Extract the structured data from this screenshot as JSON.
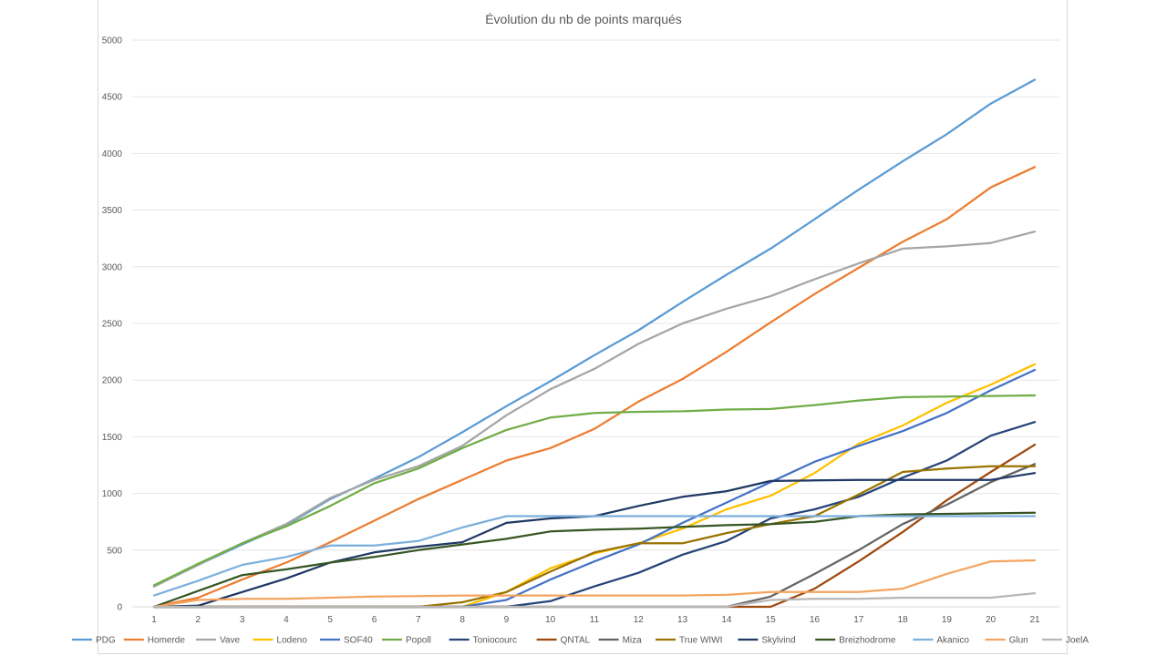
{
  "chart_data": {
    "type": "line",
    "title": "Évolution du nb de points marqués",
    "xlabel": "",
    "ylabel": "",
    "x": [
      1,
      2,
      3,
      4,
      5,
      6,
      7,
      8,
      9,
      10,
      11,
      12,
      13,
      14,
      15,
      16,
      17,
      18,
      19,
      20,
      21
    ],
    "x_ticks": [
      "1",
      "2",
      "3",
      "4",
      "5",
      "6",
      "7",
      "8",
      "9",
      "10",
      "11",
      "12",
      "13",
      "14",
      "15",
      "16",
      "17",
      "18",
      "19",
      "20",
      "21"
    ],
    "ylim": [
      0,
      5000
    ],
    "y_ticks": [
      "0",
      "500",
      "1000",
      "1500",
      "2000",
      "2500",
      "3000",
      "3500",
      "4000",
      "4500",
      "5000"
    ],
    "grid": true,
    "legend_position": "bottom",
    "series": [
      {
        "name": "PDG",
        "color": "#5b9bd5",
        "values": [
          180,
          370,
          550,
          720,
          950,
          1130,
          1320,
          1540,
          1770,
          1990,
          2220,
          2440,
          2690,
          2930,
          3160,
          3420,
          3680,
          3930,
          4170,
          4440,
          4650
        ]
      },
      {
        "name": "Homerde",
        "color": "#ed7d31",
        "values": [
          0,
          80,
          240,
          390,
          570,
          760,
          950,
          1120,
          1290,
          1400,
          1570,
          1810,
          2010,
          2250,
          2510,
          2760,
          2990,
          3220,
          3420,
          3700,
          3880
        ]
      },
      {
        "name": "Vave",
        "color": "#a5a5a5",
        "values": [
          180,
          370,
          560,
          730,
          960,
          1120,
          1240,
          1420,
          1690,
          1920,
          2100,
          2320,
          2500,
          2630,
          2740,
          2890,
          3030,
          3160,
          3180,
          3210,
          3310
        ]
      },
      {
        "name": "Lodeno",
        "color": "#ffc000",
        "values": [
          0,
          0,
          0,
          0,
          0,
          0,
          0,
          0,
          130,
          340,
          470,
          560,
          690,
          860,
          980,
          1180,
          1440,
          1600,
          1800,
          1960,
          2140
        ]
      },
      {
        "name": "SOF40",
        "color": "#4472c4",
        "values": [
          0,
          0,
          0,
          0,
          0,
          0,
          0,
          0,
          60,
          240,
          400,
          550,
          740,
          920,
          1100,
          1280,
          1420,
          1550,
          1710,
          1910,
          2090
        ]
      },
      {
        "name": "Popoll",
        "color": "#70ad47",
        "values": [
          190,
          380,
          560,
          710,
          890,
          1090,
          1220,
          1400,
          1560,
          1670,
          1710,
          1720,
          1725,
          1740,
          1745,
          1780,
          1820,
          1850,
          1855,
          1860,
          1865
        ]
      },
      {
        "name": "Toniocourc",
        "color": "#264478",
        "values": [
          0,
          0,
          0,
          0,
          0,
          0,
          0,
          0,
          0,
          50,
          180,
          300,
          460,
          580,
          780,
          860,
          970,
          1140,
          1290,
          1510,
          1630
        ]
      },
      {
        "name": "QNTAL",
        "color": "#9e480e",
        "values": [
          0,
          0,
          0,
          0,
          0,
          0,
          0,
          0,
          0,
          0,
          0,
          0,
          0,
          0,
          0,
          160,
          400,
          660,
          940,
          1190,
          1430
        ]
      },
      {
        "name": "Miza",
        "color": "#636363",
        "values": [
          0,
          0,
          0,
          0,
          0,
          0,
          0,
          0,
          0,
          0,
          0,
          0,
          0,
          0,
          90,
          290,
          500,
          730,
          900,
          1100,
          1260
        ]
      },
      {
        "name": "True WIWI",
        "color": "#997300",
        "values": [
          0,
          0,
          0,
          0,
          0,
          0,
          0,
          40,
          130,
          310,
          480,
          560,
          560,
          650,
          730,
          800,
          990,
          1190,
          1220,
          1240,
          1240
        ]
      },
      {
        "name": "Skylvind",
        "color": "#1f3864",
        "values": [
          0,
          10,
          130,
          250,
          390,
          480,
          530,
          570,
          740,
          780,
          800,
          890,
          970,
          1020,
          1110,
          1115,
          1120,
          1120,
          1120,
          1120,
          1180
        ]
      },
      {
        "name": "Breizhodrome",
        "color": "#375623",
        "values": [
          0,
          140,
          280,
          330,
          390,
          440,
          500,
          550,
          600,
          665,
          680,
          690,
          705,
          720,
          730,
          750,
          800,
          815,
          820,
          825,
          830
        ]
      },
      {
        "name": "Akanico",
        "color": "#7cafdd",
        "values": [
          100,
          230,
          370,
          440,
          540,
          540,
          580,
          700,
          800,
          800,
          800,
          800,
          800,
          800,
          800,
          800,
          800,
          800,
          800,
          800,
          800
        ]
      },
      {
        "name": "Glun",
        "color": "#f4a460",
        "values": [
          0,
          60,
          70,
          70,
          80,
          90,
          95,
          100,
          100,
          100,
          100,
          100,
          100,
          105,
          130,
          130,
          130,
          160,
          290,
          400,
          410
        ]
      },
      {
        "name": "JoelA",
        "color": "#b7b7b7",
        "values": [
          0,
          0,
          0,
          0,
          0,
          0,
          0,
          0,
          0,
          0,
          0,
          0,
          0,
          0,
          60,
          70,
          70,
          80,
          80,
          80,
          120
        ]
      }
    ]
  }
}
